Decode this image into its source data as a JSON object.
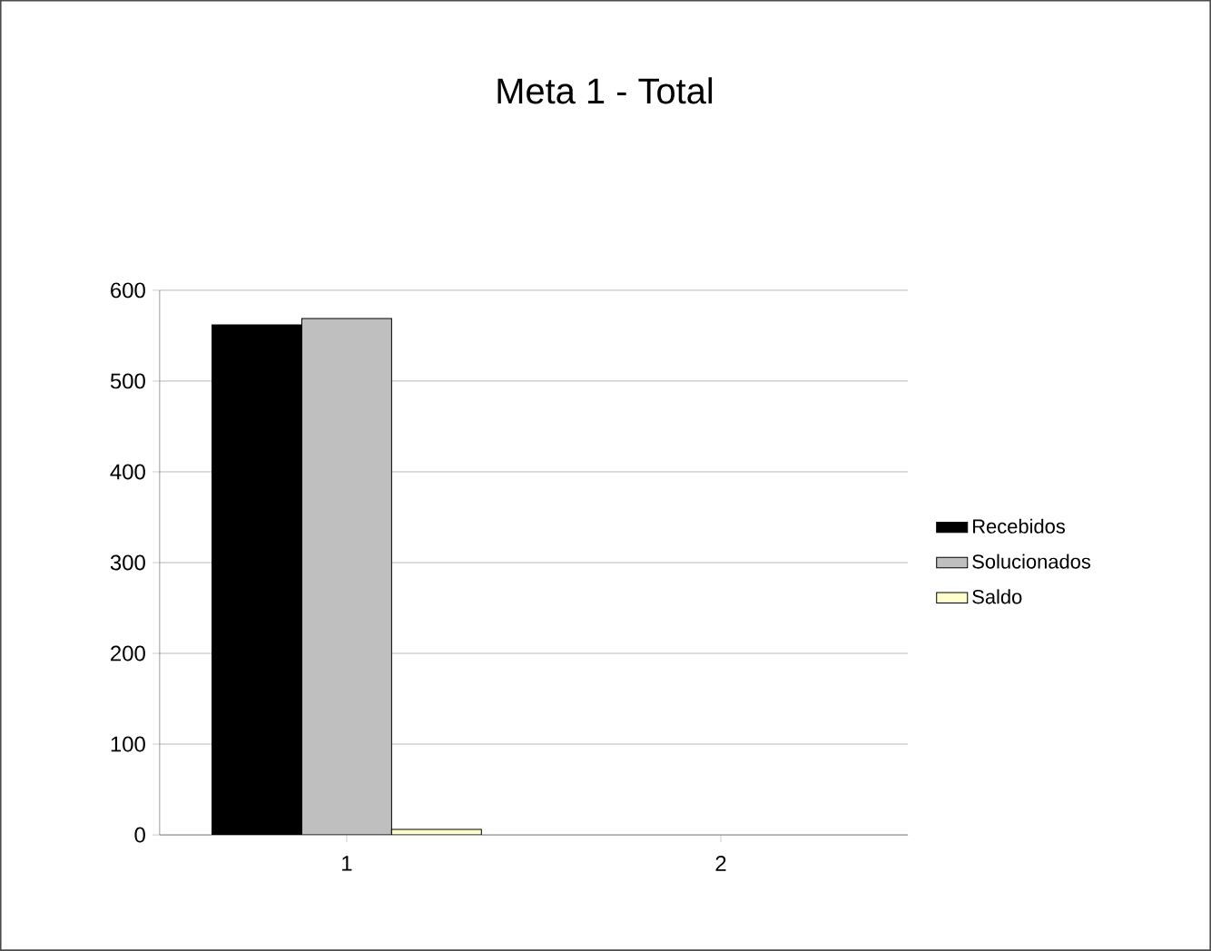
{
  "chart_data": {
    "type": "bar",
    "title": "Meta 1 - Total",
    "categories": [
      "1",
      "2"
    ],
    "series": [
      {
        "name": "Recebidos",
        "color": "#000000",
        "values": [
          562,
          null
        ]
      },
      {
        "name": "Solucionados",
        "color": "#bfbfbf",
        "values": [
          569,
          null
        ]
      },
      {
        "name": "Saldo",
        "color": "#ffffcc",
        "values": [
          6,
          null
        ]
      }
    ],
    "ylim": [
      0,
      600
    ],
    "yticks": [
      0,
      100,
      200,
      300,
      400,
      500,
      600
    ],
    "grid": "y",
    "legend": "right"
  }
}
